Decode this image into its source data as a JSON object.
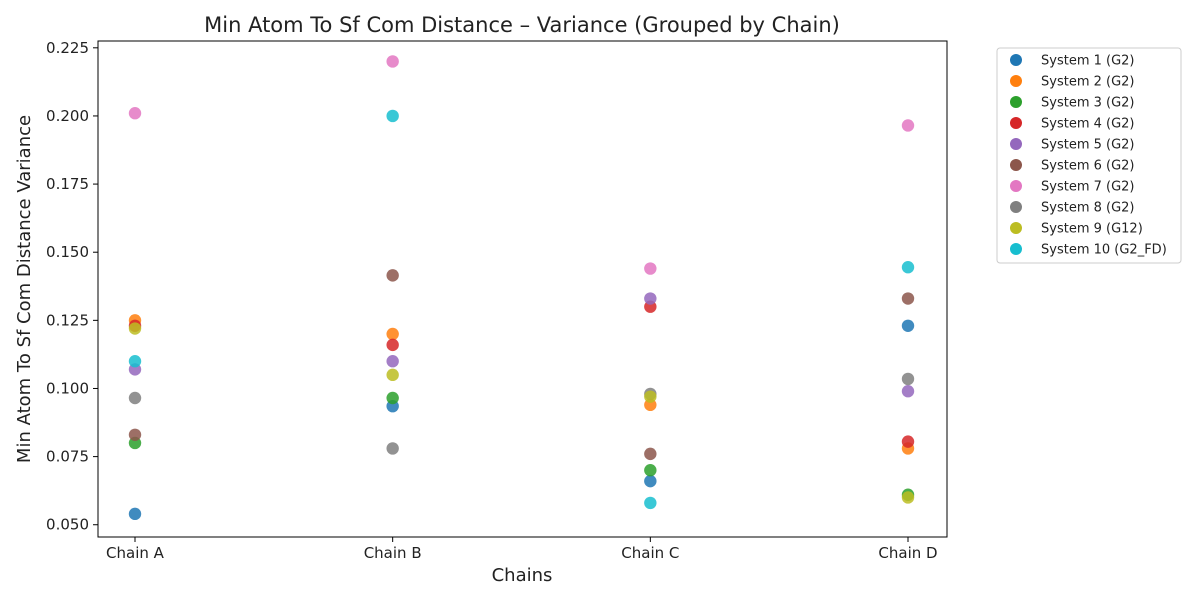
{
  "chart_data": {
    "type": "scatter",
    "title": "Min Atom To Sf Com Distance – Variance (Grouped by Chain)",
    "xlabel": "Chains",
    "ylabel": "Min Atom To Sf Com Distance Variance",
    "categories": [
      "Chain A",
      "Chain B",
      "Chain C",
      "Chain D"
    ],
    "ylim": [
      0.0455,
      0.2275
    ],
    "yticks": [
      "0.050",
      "0.075",
      "0.100",
      "0.125",
      "0.150",
      "0.175",
      "0.200",
      "0.225"
    ],
    "grid": false,
    "legend_position": "outside-right",
    "series": [
      {
        "name": "System 1 (G2)",
        "color": "#1f77b4",
        "values": [
          0.054,
          0.0935,
          0.066,
          0.123
        ]
      },
      {
        "name": "System 2 (G2)",
        "color": "#ff7f0e",
        "values": [
          0.125,
          0.12,
          0.094,
          0.078
        ]
      },
      {
        "name": "System 3 (G2)",
        "color": "#2ca02c",
        "values": [
          0.08,
          0.0965,
          0.07,
          0.061
        ]
      },
      {
        "name": "System 4 (G2)",
        "color": "#d62728",
        "values": [
          0.123,
          0.116,
          0.13,
          0.0805
        ]
      },
      {
        "name": "System 5 (G2)",
        "color": "#9467bd",
        "values": [
          0.107,
          0.11,
          0.133,
          0.099
        ]
      },
      {
        "name": "System 6 (G2)",
        "color": "#8c564b",
        "values": [
          0.083,
          0.1415,
          0.076,
          0.133
        ]
      },
      {
        "name": "System 7 (G2)",
        "color": "#e377c2",
        "values": [
          0.201,
          0.22,
          0.144,
          0.1965
        ]
      },
      {
        "name": "System 8 (G2)",
        "color": "#7f7f7f",
        "values": [
          0.0965,
          0.078,
          0.098,
          0.1035
        ]
      },
      {
        "name": "System 9 (G12)",
        "color": "#bcbd22",
        "values": [
          0.122,
          0.105,
          0.097,
          0.06
        ]
      },
      {
        "name": "System 10 (G2_FD)",
        "color": "#17becf",
        "values": [
          0.11,
          0.2,
          0.058,
          0.1445
        ]
      }
    ]
  }
}
